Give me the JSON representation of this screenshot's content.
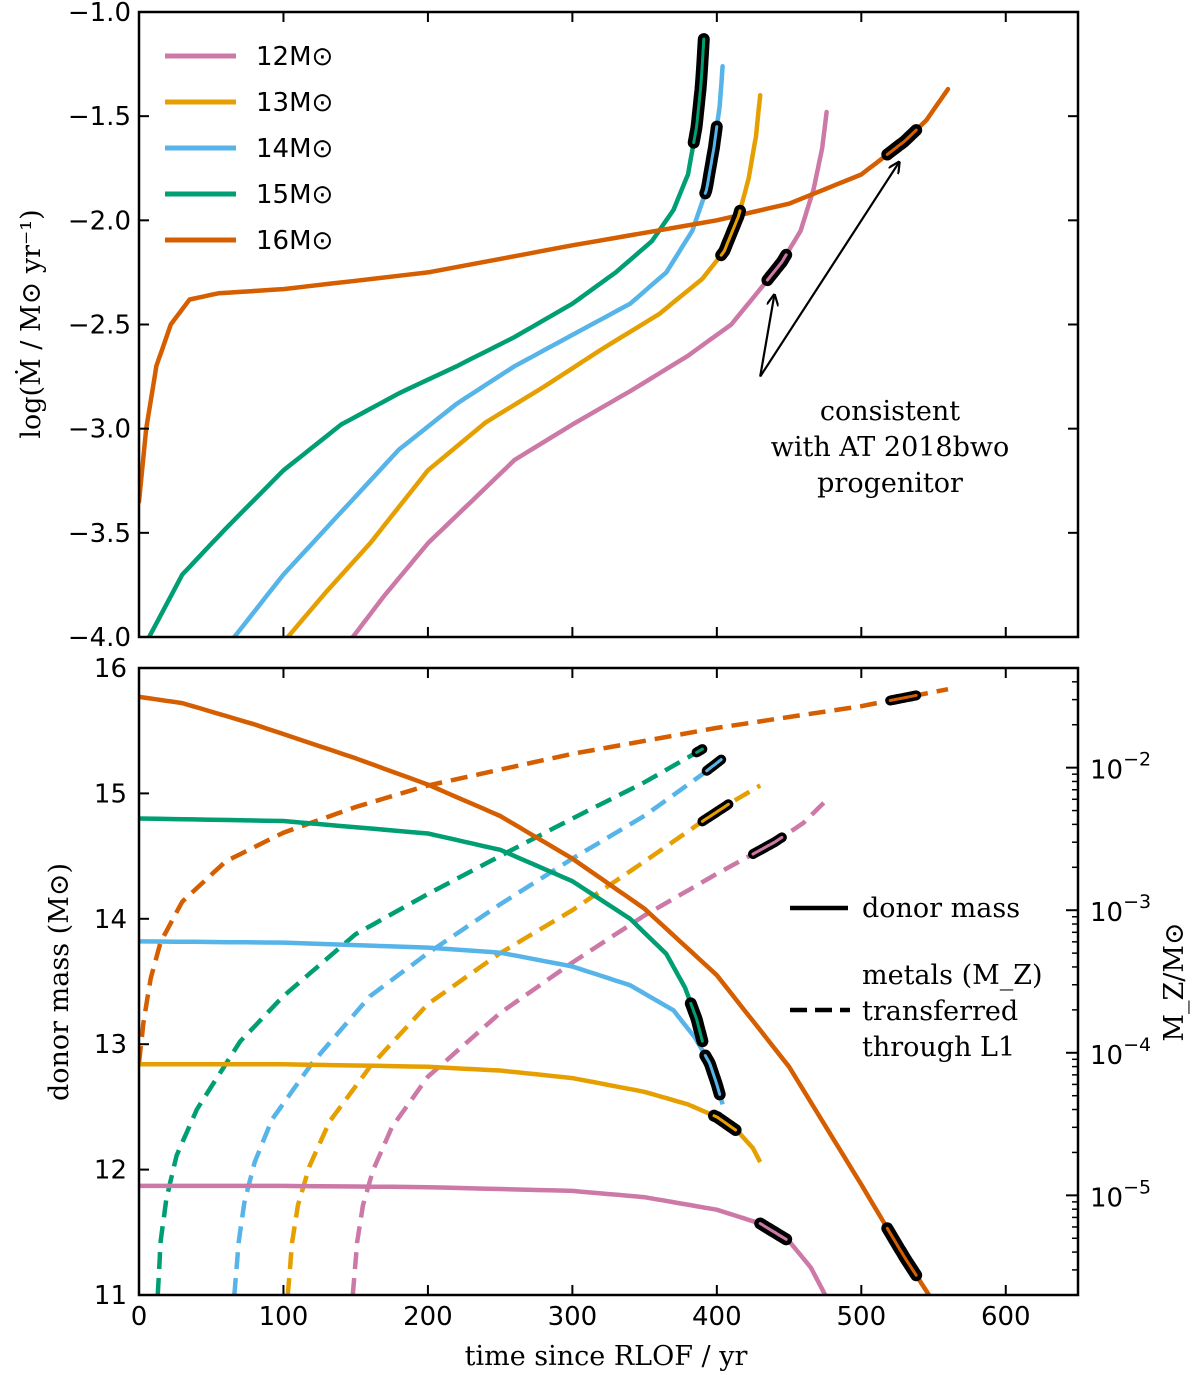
{
  "chart_data": [
    {
      "panel": "top",
      "type": "line",
      "xlim": [
        0,
        650
      ],
      "ylim": [
        -4.0,
        -1.0
      ],
      "ylabel": "log(Ṁ / M⊙ yr⁻¹)",
      "yticks": [
        -4.0,
        -3.5,
        -3.0,
        -2.5,
        -2.0,
        -1.5,
        -1.0
      ],
      "ytick_labels": [
        "−4.0",
        "−3.5",
        "−3.0",
        "−2.5",
        "−2.0",
        "−1.5",
        "−1.0"
      ],
      "xticks": [
        0,
        100,
        200,
        300,
        400,
        500,
        600
      ],
      "legend_placement": "upper-left",
      "series": [
        {
          "name": "12M⊙",
          "color": "#CC79A7",
          "x": [
            148,
            170,
            200,
            230,
            260,
            300,
            340,
            380,
            410,
            430,
            445,
            458,
            467,
            473,
            476
          ],
          "y": [
            -4.0,
            -3.8,
            -3.55,
            -3.35,
            -3.15,
            -2.98,
            -2.82,
            -2.65,
            -2.5,
            -2.33,
            -2.2,
            -2.05,
            -1.85,
            -1.65,
            -1.48
          ],
          "highlight_x": [
            435,
            448
          ]
        },
        {
          "name": "13M⊙",
          "color": "#E69F00",
          "x": [
            103,
            130,
            160,
            200,
            240,
            280,
            320,
            360,
            390,
            405,
            415,
            422,
            427,
            430
          ],
          "y": [
            -4.0,
            -3.78,
            -3.55,
            -3.2,
            -2.97,
            -2.8,
            -2.62,
            -2.45,
            -2.28,
            -2.15,
            -1.98,
            -1.8,
            -1.6,
            -1.4
          ],
          "highlight_x": [
            403,
            416
          ]
        },
        {
          "name": "14M⊙",
          "color": "#56B4E9",
          "x": [
            66,
            100,
            140,
            180,
            220,
            260,
            300,
            340,
            365,
            383,
            393,
            398,
            402,
            404
          ],
          "y": [
            -4.0,
            -3.7,
            -3.4,
            -3.1,
            -2.88,
            -2.7,
            -2.55,
            -2.4,
            -2.25,
            -2.05,
            -1.85,
            -1.65,
            -1.45,
            -1.26
          ],
          "highlight_x": [
            392,
            400
          ]
        },
        {
          "name": "15M⊙",
          "color": "#009E73",
          "x": [
            7,
            30,
            60,
            100,
            140,
            180,
            220,
            260,
            300,
            330,
            355,
            370,
            380,
            386,
            389,
            391
          ],
          "y": [
            -4.0,
            -3.7,
            -3.48,
            -3.2,
            -2.98,
            -2.83,
            -2.7,
            -2.56,
            -2.4,
            -2.25,
            -2.1,
            -1.95,
            -1.78,
            -1.55,
            -1.35,
            -1.13
          ],
          "highlight_x": [
            384,
            391
          ]
        },
        {
          "name": "16M⊙",
          "color": "#D55E00",
          "x": [
            0,
            5,
            12,
            22,
            35,
            55,
            100,
            200,
            300,
            400,
            450,
            500,
            530,
            545,
            560
          ],
          "y": [
            -3.35,
            -3.0,
            -2.7,
            -2.5,
            -2.38,
            -2.35,
            -2.33,
            -2.25,
            -2.12,
            -2.0,
            -1.92,
            -1.78,
            -1.62,
            -1.52,
            -1.37
          ],
          "highlight_x": [
            518,
            538
          ]
        }
      ],
      "annotation": {
        "lines": [
          "consistent",
          "with AT 2018bwo",
          "progenitor"
        ],
        "arrow_targets": [
          [
            441,
            -2.31
          ],
          [
            530,
            -1.68
          ]
        ],
        "arrow_origin": [
          430,
          -2.75
        ]
      }
    },
    {
      "panel": "bottom",
      "type": "line",
      "xlim": [
        0,
        650
      ],
      "ylim": [
        11,
        16
      ],
      "xlabel": "time since RLOF / yr",
      "ylabel": "donor mass (M⊙)",
      "y2label": "M_Z/M⊙",
      "y2scale": "log",
      "y2lim": [
        2e-06,
        0.05
      ],
      "yticks": [
        11,
        12,
        13,
        14,
        15,
        16
      ],
      "xticks": [
        0,
        100,
        200,
        300,
        400,
        500,
        600
      ],
      "xtick_labels": [
        "0",
        "100",
        "200",
        "300",
        "400",
        "500",
        "600"
      ],
      "y2ticks": [
        1e-05,
        0.0001,
        0.001,
        0.01
      ],
      "y2tick_bases": [
        "10",
        "10",
        "10",
        "10"
      ],
      "y2tick_exps": [
        "−5",
        "−4",
        "−3",
        "−2"
      ],
      "legend": [
        {
          "style": "solid",
          "lines": [
            "donor mass"
          ]
        },
        {
          "style": "dashed",
          "lines": [
            "metals (M_Z)",
            "transferred",
            "through L1"
          ]
        }
      ],
      "donor_mass": [
        {
          "name": "12M⊙",
          "color": "#CC79A7",
          "x": [
            0,
            100,
            200,
            300,
            350,
            400,
            430,
            450,
            465,
            475
          ],
          "y": [
            11.87,
            11.87,
            11.86,
            11.83,
            11.78,
            11.68,
            11.57,
            11.43,
            11.22,
            11.0
          ],
          "highlight_x": [
            430,
            448
          ]
        },
        {
          "name": "13M⊙",
          "color": "#E69F00",
          "x": [
            0,
            100,
            200,
            250,
            300,
            350,
            380,
            400,
            415,
            425,
            430
          ],
          "y": [
            12.84,
            12.84,
            12.82,
            12.79,
            12.73,
            12.62,
            12.52,
            12.42,
            12.3,
            12.17,
            12.06
          ],
          "highlight_x": [
            398,
            413
          ]
        },
        {
          "name": "14M⊙",
          "color": "#56B4E9",
          "x": [
            0,
            100,
            200,
            250,
            300,
            340,
            370,
            385,
            395,
            400,
            404
          ],
          "y": [
            13.82,
            13.81,
            13.77,
            13.73,
            13.62,
            13.47,
            13.27,
            13.05,
            12.85,
            12.68,
            12.52
          ],
          "highlight_x": [
            392,
            402
          ]
        },
        {
          "name": "15M⊙",
          "color": "#009E73",
          "x": [
            0,
            100,
            200,
            250,
            300,
            340,
            365,
            378,
            386,
            391
          ],
          "y": [
            14.8,
            14.78,
            14.68,
            14.55,
            14.3,
            14.0,
            13.72,
            13.45,
            13.2,
            12.98
          ],
          "highlight_x": [
            382,
            390
          ]
        },
        {
          "name": "16M⊙",
          "color": "#D55E00",
          "x": [
            0,
            30,
            80,
            150,
            200,
            250,
            300,
            350,
            400,
            450,
            500,
            530,
            548
          ],
          "y": [
            15.77,
            15.72,
            15.55,
            15.28,
            15.07,
            14.82,
            14.48,
            14.08,
            13.55,
            12.82,
            11.88,
            11.3,
            10.98
          ],
          "highlight_x": [
            518,
            538
          ]
        }
      ],
      "metals_transferred": [
        {
          "name": "12M⊙",
          "color": "#CC79A7",
          "x": [
            148,
            151,
            155,
            162,
            175,
            200,
            250,
            300,
            350,
            400,
            440,
            460,
            475
          ],
          "y": [
            2e-06,
            4.7e-06,
            8.5e-06,
            1.5e-05,
            3e-05,
            6.8e-05,
            0.00019,
            0.00043,
            0.00092,
            0.0018,
            0.003,
            0.0041,
            0.0058
          ],
          "highlight_x": [
            425,
            445
          ]
        },
        {
          "name": "13M⊙",
          "color": "#E69F00",
          "x": [
            103,
            106,
            110,
            118,
            132,
            160,
            200,
            250,
            300,
            350,
            390,
            410,
            430
          ],
          "y": [
            2e-06,
            4.7e-06,
            8.5e-06,
            1.6e-05,
            3.3e-05,
            8e-05,
            0.00022,
            0.0005,
            0.001,
            0.0022,
            0.0042,
            0.0057,
            0.0075
          ],
          "highlight_x": [
            390,
            408
          ]
        },
        {
          "name": "14M⊙",
          "color": "#56B4E9",
          "x": [
            66,
            69,
            73,
            80,
            92,
            120,
            160,
            200,
            250,
            300,
            350,
            390,
            404
          ],
          "y": [
            2e-06,
            4.7e-06,
            9e-06,
            1.7e-05,
            3.4e-05,
            8.5e-05,
            0.00025,
            0.0005,
            0.0011,
            0.0023,
            0.0046,
            0.009,
            0.0116
          ],
          "highlight_x": [
            393,
            403
          ]
        },
        {
          "name": "15M⊙",
          "color": "#009E73",
          "x": [
            13,
            15,
            19,
            26,
            40,
            70,
            100,
            150,
            200,
            250,
            300,
            350,
            390
          ],
          "y": [
            2e-06,
            4.8e-06,
            9.5e-06,
            1.9e-05,
            4e-05,
            0.00012,
            0.00025,
            0.00068,
            0.0013,
            0.0024,
            0.0044,
            0.0079,
            0.0135
          ],
          "highlight_x": [
            386,
            390
          ]
        },
        {
          "name": "16M⊙",
          "color": "#D55E00",
          "x": [
            0,
            3,
            8,
            15,
            30,
            60,
            100,
            150,
            200,
            300,
            400,
            500,
            560
          ],
          "y": [
            8.5e-05,
            0.00016,
            0.00033,
            0.0006,
            0.00115,
            0.0022,
            0.0035,
            0.0053,
            0.0075,
            0.0125,
            0.019,
            0.027,
            0.0355
          ],
          "highlight_x": [
            520,
            538
          ]
        }
      ]
    }
  ]
}
